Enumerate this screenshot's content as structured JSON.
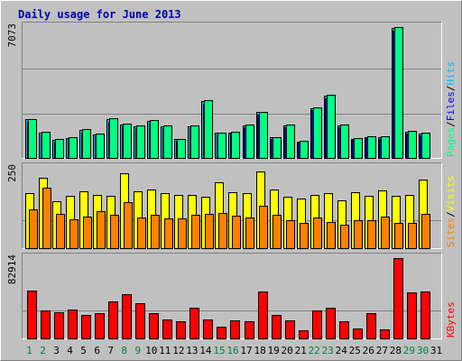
{
  "title": "Daily usage for June 2013",
  "colors": {
    "background": "#c0c0c0",
    "title": "#0000aa",
    "hits": "#00c0ff",
    "files": "#0000ff",
    "pages": "#00ff80",
    "visits": "#ffff00",
    "sites": "#ff8000",
    "kbytes": "#ff0000",
    "day_normal": "#000000",
    "day_weekend": "#008040"
  },
  "chart_data": {
    "type": "bar",
    "days": [
      "1",
      "2",
      "3",
      "4",
      "5",
      "6",
      "7",
      "8",
      "9",
      "10",
      "11",
      "12",
      "13",
      "14",
      "15",
      "16",
      "17",
      "18",
      "19",
      "20",
      "21",
      "22",
      "23",
      "24",
      "25",
      "26",
      "27",
      "28",
      "29",
      "30",
      "31"
    ],
    "weekend_days": [
      "1",
      "2",
      "8",
      "9",
      "15",
      "16",
      "22",
      "23",
      "29",
      "30"
    ],
    "panels": [
      {
        "id": "usage",
        "ymax_label": "7073",
        "ymax": 7073,
        "side_labels": [
          "Pages",
          "Files",
          "Hits"
        ],
        "series": [
          {
            "name": "Hits",
            "values": [
              2080,
              1370,
              980,
              1090,
              1500,
              1280,
              2090,
              1810,
              1720,
              1990,
              1720,
              1000,
              1700,
              3050,
              1350,
              1390,
              1750,
              2470,
              1100,
              1770,
              880,
              2700,
              3360,
              1770,
              1040,
              1130,
              1120,
              7000,
              1420,
              1330,
              0
            ]
          },
          {
            "name": "Files",
            "values": [
              1970,
              1270,
              900,
              1010,
              1390,
              1180,
              1970,
              1700,
              1620,
              1880,
              1610,
              920,
              1590,
              2920,
              1260,
              1300,
              1640,
              2340,
              1020,
              1660,
              810,
              2580,
              3220,
              1660,
              960,
              1050,
              1040,
              6880,
              1330,
              1240,
              0
            ]
          },
          {
            "name": "Pages",
            "values": [
              2120,
              1410,
              1010,
              1120,
              1540,
              1320,
              2130,
              1850,
              1760,
              2030,
              1760,
              1030,
              1740,
              3100,
              1390,
              1430,
              1790,
              2510,
              1140,
              1810,
              910,
              2740,
              3400,
              1810,
              1070,
              1160,
              1150,
              7073,
              1450,
              1360,
              0
            ]
          }
        ]
      },
      {
        "id": "visits",
        "ymax_label": "250",
        "ymax": 250,
        "side_labels": [
          "Sites",
          "Visits"
        ],
        "series": [
          {
            "name": "Visits",
            "values": [
              172,
              219,
              147,
              163,
              176,
              165,
              163,
              233,
              176,
              183,
              172,
              167,
              167,
              161,
              204,
              173,
              172,
              238,
              183,
              159,
              155,
              167,
              171,
              149,
              174,
              162,
              180,
              164,
              167,
              214,
              0
            ]
          },
          {
            "name": "Sites",
            "values": [
              122,
              188,
              108,
              90,
              97,
              116,
              103,
              143,
              95,
              105,
              92,
              93,
              103,
              108,
              110,
              100,
              96,
              132,
              105,
              87,
              79,
              96,
              81,
              72,
              88,
              88,
              98,
              80,
              80,
              107,
              0
            ]
          }
        ]
      },
      {
        "id": "kbytes",
        "ymax_label": "82914",
        "ymax": 82914,
        "side_labels": [
          "KBytes"
        ],
        "series": [
          {
            "name": "KBytes",
            "values": [
              49500,
              28800,
              27300,
              30100,
              24400,
              25700,
              38000,
              45900,
              36600,
              26300,
              19400,
              17500,
              32100,
              19800,
              11900,
              18200,
              17400,
              48100,
              24100,
              18800,
              8800,
              29200,
              31600,
              18000,
              10500,
              26500,
              9400,
              82914,
              47100,
              48000,
              0
            ]
          }
        ]
      }
    ]
  }
}
